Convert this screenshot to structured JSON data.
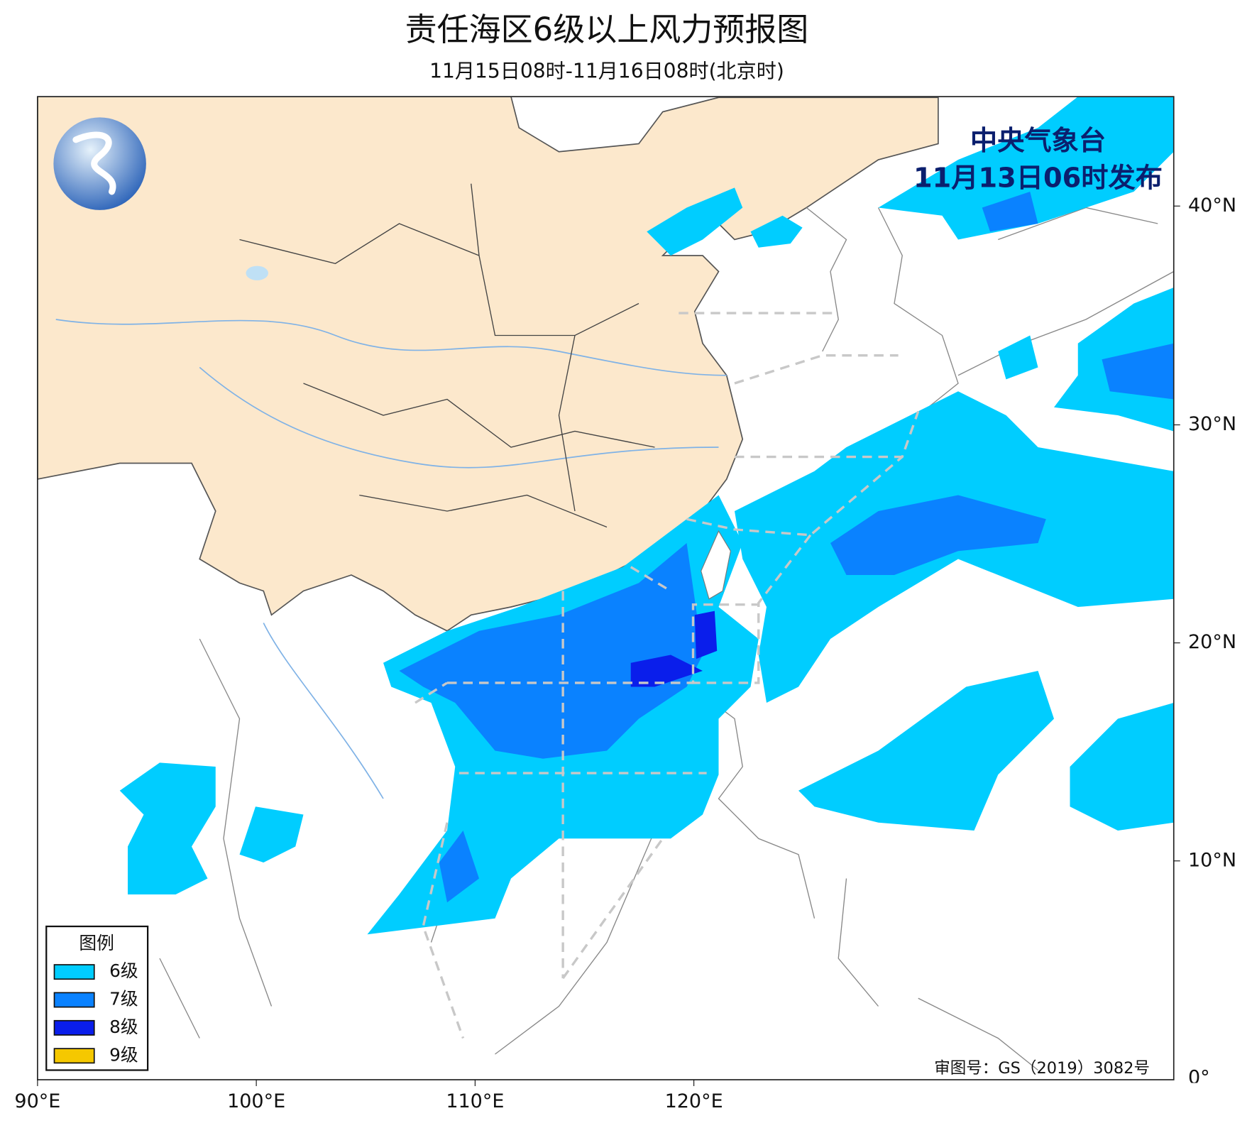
{
  "header": {
    "title": "责任海区6级以上风力预报图",
    "subtitle": "11月15日08时-11月16日08时(北京时)"
  },
  "issuer": {
    "agency": "中央气象台",
    "issued": "11月13日06时发布"
  },
  "legend": {
    "title": "图例",
    "items": [
      {
        "label": "6级",
        "color": "#00cdff"
      },
      {
        "label": "7级",
        "color": "#0a82ff"
      },
      {
        "label": "8级",
        "color": "#0a1eeb"
      },
      {
        "label": "9级",
        "color": "#f5c800"
      }
    ]
  },
  "axes": {
    "x_labels": [
      "90°E",
      "100°E",
      "110°E",
      "120°E"
    ],
    "y_labels": [
      "40°N",
      "30°N",
      "20°N",
      "10°N",
      "0°"
    ]
  },
  "map_note": "审图号：GS（2019）3082号"
}
